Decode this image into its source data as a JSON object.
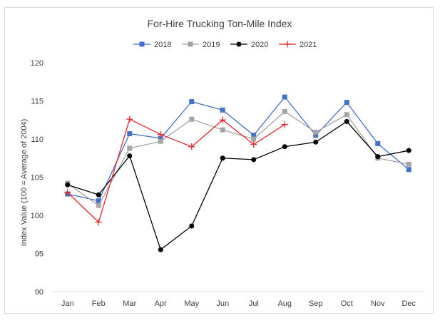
{
  "chart_data": {
    "type": "line",
    "title": "For-Hire Trucking Ton-Mile Index",
    "xlabel": "",
    "ylabel": "Index Value (100 = Average of 2004)",
    "categories": [
      "Jan",
      "Feb",
      "Mar",
      "Apr",
      "May",
      "Jun",
      "Jul",
      "Aug",
      "Sep",
      "Oct",
      "Nov",
      "Dec"
    ],
    "ylim": [
      90,
      120
    ],
    "yticks": [
      90,
      95,
      100,
      105,
      110,
      115,
      120
    ],
    "grid": false,
    "legend": "top",
    "series": [
      {
        "name": "2018",
        "color": "#4472c4",
        "marker": "square",
        "values": [
          102.8,
          101.9,
          110.7,
          110.1,
          114.9,
          113.8,
          110.5,
          115.5,
          110.5,
          114.8,
          109.4,
          106.0
        ]
      },
      {
        "name": "2019",
        "color": "#a5a5a5",
        "marker": "square",
        "values": [
          104.2,
          101.3,
          108.8,
          109.7,
          112.6,
          111.2,
          110.0,
          113.6,
          110.9,
          113.2,
          107.5,
          106.7
        ]
      },
      {
        "name": "2020",
        "color": "#000000",
        "marker": "circle",
        "values": [
          104.0,
          102.7,
          107.8,
          95.5,
          98.6,
          107.5,
          107.3,
          109.0,
          109.6,
          112.3,
          107.7,
          108.5
        ]
      },
      {
        "name": "2021",
        "color": "#e0282e",
        "marker": "plus",
        "values": [
          103.0,
          99.1,
          112.6,
          110.6,
          109.0,
          112.5,
          109.3,
          111.9,
          null,
          null,
          null,
          null
        ]
      }
    ]
  }
}
